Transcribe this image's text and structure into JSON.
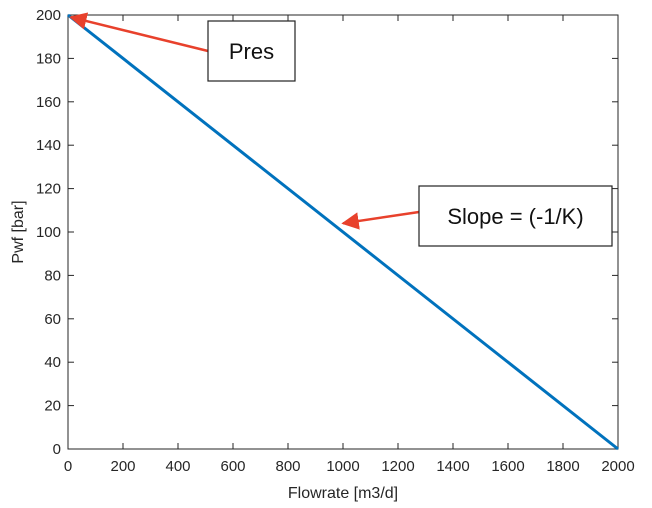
{
  "chart_data": {
    "type": "line",
    "xlabel": "Flowrate [m3/d]",
    "ylabel": "Pwf [bar]",
    "xlim": [
      0,
      2000
    ],
    "ylim": [
      0,
      200
    ],
    "x_ticks": [
      "0",
      "200",
      "400",
      "600",
      "800",
      "1000",
      "1200",
      "1400",
      "1600",
      "1800",
      "2000"
    ],
    "y_ticks": [
      "0",
      "20",
      "40",
      "60",
      "80",
      "100",
      "120",
      "140",
      "160",
      "180",
      "200"
    ],
    "grid": false,
    "series": [
      {
        "x": [
          0,
          2000
        ],
        "y": [
          200,
          0
        ],
        "color": "#0072BD"
      }
    ],
    "annotations": [
      {
        "text": "Pres",
        "points_to": [
          10,
          199
        ]
      },
      {
        "text": "Slope = (-1/K)",
        "points_to": [
          1000,
          104
        ]
      }
    ],
    "arrow_color": "#E8412C"
  }
}
